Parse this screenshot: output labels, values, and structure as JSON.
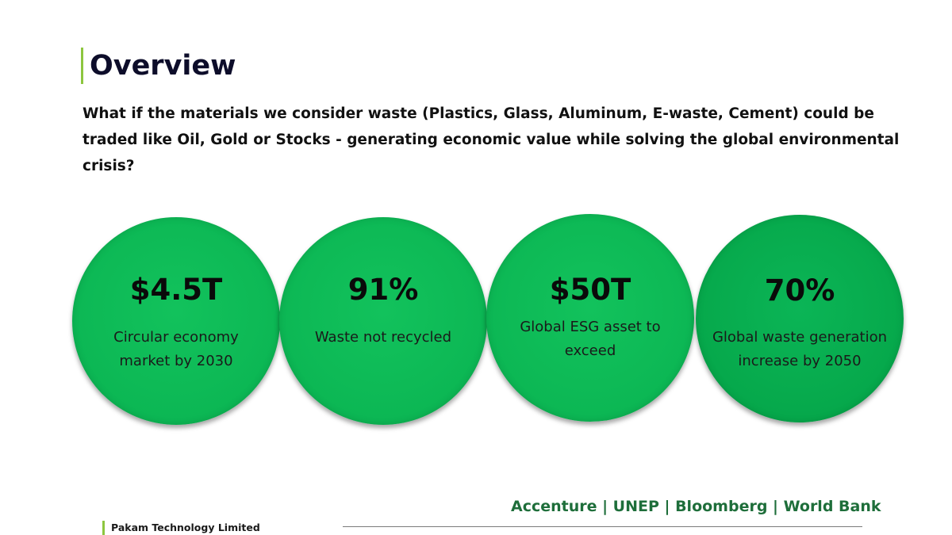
{
  "slide": {
    "title": "Overview",
    "intro": "What if the materials we consider waste (Plastics, Glass, Aluminum, E-waste, Cement) could be traded like Oil, Gold or Stocks - generating economic value while solving the global environmental crisis?",
    "stats": [
      {
        "value": "$4.5T",
        "label": "Circular economy market by 2030"
      },
      {
        "value": "91%",
        "label": "Waste not recycled"
      },
      {
        "value": "$50T",
        "label": "Global ESG asset to exceed"
      },
      {
        "value": "70%",
        "label": "Global waste generation increase by 2050"
      }
    ],
    "sources": "Accenture | UNEP | Bloomberg | World Bank",
    "company": "Pakam Technology Limited"
  },
  "colors": {
    "circle_green": "#0cb754",
    "accent_bar": "#8dc63f",
    "sources_text": "#1e6e3a"
  }
}
